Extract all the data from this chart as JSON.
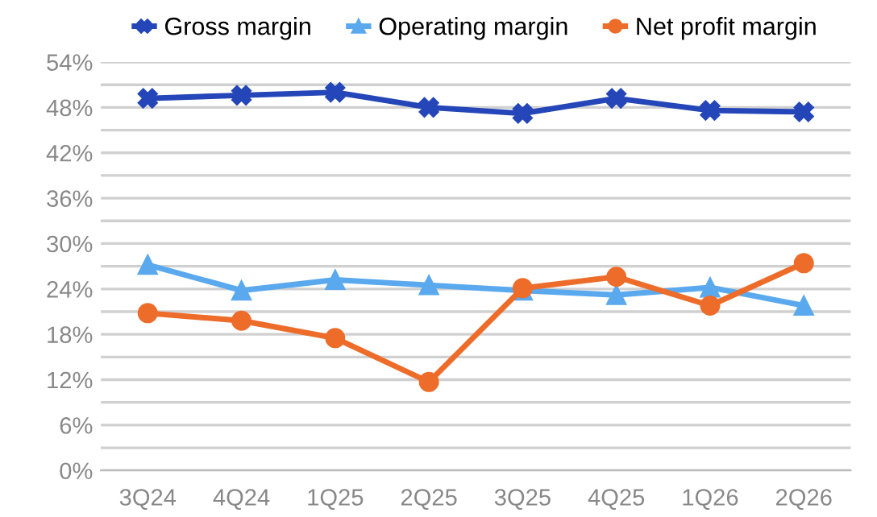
{
  "chart_data": {
    "type": "line",
    "categories": [
      "3Q24",
      "4Q24",
      "1Q25",
      "2Q25",
      "3Q25",
      "4Q25",
      "1Q26",
      "2Q26"
    ],
    "series": [
      {
        "name": "Gross margin",
        "color": "#2446b8",
        "marker": "cross",
        "values": [
          49.2,
          49.6,
          50.0,
          48.0,
          47.2,
          49.2,
          47.6,
          47.4
        ]
      },
      {
        "name": "Operating margin",
        "color": "#5aa9ee",
        "marker": "triangle",
        "values": [
          27.2,
          23.8,
          25.2,
          24.5,
          23.8,
          23.2,
          24.2,
          21.8
        ]
      },
      {
        "name": "Net profit margin",
        "color": "#ee6c2a",
        "marker": "circle",
        "values": [
          20.8,
          19.8,
          17.5,
          11.7,
          24.1,
          25.6,
          21.8,
          27.4
        ]
      }
    ],
    "ylim": [
      0,
      54
    ],
    "yticks": [
      {
        "value": 0,
        "label": "0%"
      },
      {
        "value": 3,
        "label": null
      },
      {
        "value": 6,
        "label": "6%"
      },
      {
        "value": 9,
        "label": null
      },
      {
        "value": 12,
        "label": "12%"
      },
      {
        "value": 15,
        "label": null
      },
      {
        "value": 18,
        "label": "18%"
      },
      {
        "value": 21,
        "label": null
      },
      {
        "value": 24,
        "label": "24%"
      },
      {
        "value": 27,
        "label": null
      },
      {
        "value": 30,
        "label": "30%"
      },
      {
        "value": 33,
        "label": null
      },
      {
        "value": 36,
        "label": "36%"
      },
      {
        "value": 39,
        "label": null
      },
      {
        "value": 42,
        "label": "42%"
      },
      {
        "value": 45,
        "label": null
      },
      {
        "value": 48,
        "label": "48%"
      },
      {
        "value": 51,
        "label": null
      },
      {
        "value": 54,
        "label": "54%"
      }
    ],
    "grid": "y",
    "legend": "top",
    "line_style": "solid"
  }
}
